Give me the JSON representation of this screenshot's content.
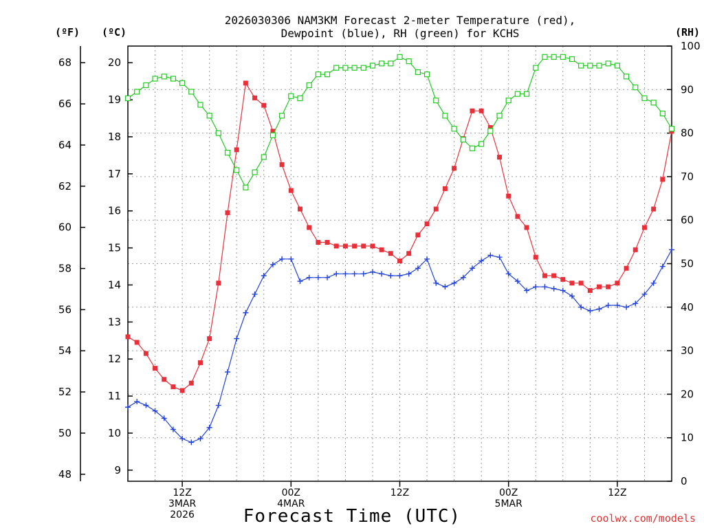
{
  "chart_data": {
    "type": "line",
    "title_line1": "2026030306 NAM3KM Forecast 2-meter Temperature (red),",
    "title_line2": "Dewpoint (blue), RH (green) for KCHS",
    "left_unit_f": "(ºF)",
    "left_unit_c": "(ºC)",
    "right_unit": "(RH)",
    "xlabel": "Forecast Time (UTC)",
    "credit": "coolwx.com/models",
    "x_hours_start": 6,
    "x_hours_end": 66,
    "fahrenheit_ticks": [
      "48",
      "50",
      "52",
      "54",
      "56",
      "58",
      "60",
      "62",
      "64",
      "66",
      "68"
    ],
    "celsius_ticks": [
      "9",
      "10",
      "11",
      "12",
      "13",
      "14",
      "15",
      "16",
      "17",
      "18",
      "19",
      "20"
    ],
    "rh_ticks": [
      "0",
      "10",
      "20",
      "30",
      "40",
      "50",
      "60",
      "70",
      "80",
      "90",
      "100"
    ],
    "y_celsius_range": [
      8.7,
      20.45
    ],
    "y_rh_range": [
      0,
      100
    ],
    "x_ticks": [
      {
        "hour": 12,
        "lines": [
          "12Z",
          "3MAR",
          "2026"
        ]
      },
      {
        "hour": 24,
        "lines": [
          "00Z",
          "4MAR"
        ]
      },
      {
        "hour": 36,
        "lines": [
          "12Z"
        ]
      },
      {
        "hour": 48,
        "lines": [
          "00Z",
          "5MAR"
        ]
      },
      {
        "hour": 60,
        "lines": [
          "12Z"
        ]
      }
    ],
    "grid": true,
    "series": [
      {
        "name": "Temperature",
        "color": "#e8303a",
        "marker": "filled-square",
        "values": [
          12.6,
          12.45,
          12.15,
          11.75,
          11.45,
          11.25,
          11.15,
          11.35,
          11.9,
          12.55,
          14.05,
          15.95,
          17.65,
          19.45,
          19.05,
          18.85,
          18.15,
          17.25,
          16.55,
          16.05,
          15.55,
          15.15,
          15.15,
          15.05,
          15.05,
          15.05,
          15.05,
          15.05,
          14.95,
          14.85,
          14.65,
          14.85,
          15.35,
          15.65,
          16.05,
          16.6,
          17.15,
          17.95,
          18.7,
          18.7,
          18.25,
          17.45,
          16.4,
          15.85,
          15.55,
          14.75,
          14.25,
          14.25,
          14.15,
          14.05,
          14.05,
          13.85,
          13.95,
          13.95,
          14.05,
          14.45,
          14.95,
          15.55,
          16.05,
          16.85,
          18.15
        ]
      },
      {
        "name": "Dewpoint",
        "color": "#2040d8",
        "marker": "plus",
        "values": [
          10.7,
          10.85,
          10.75,
          10.6,
          10.4,
          10.1,
          9.85,
          9.75,
          9.85,
          10.15,
          10.75,
          11.65,
          12.55,
          13.25,
          13.75,
          14.25,
          14.55,
          14.7,
          14.7,
          14.1,
          14.2,
          14.2,
          14.2,
          14.3,
          14.3,
          14.3,
          14.3,
          14.35,
          14.3,
          14.25,
          14.25,
          14.3,
          14.45,
          14.7,
          14.05,
          13.95,
          14.05,
          14.2,
          14.45,
          14.65,
          14.8,
          14.75,
          14.3,
          14.1,
          13.85,
          13.95,
          13.95,
          13.9,
          13.85,
          13.7,
          13.4,
          13.3,
          13.35,
          13.45,
          13.45,
          13.4,
          13.5,
          13.75,
          14.05,
          14.5,
          14.95
        ]
      },
      {
        "name": "RH",
        "color": "#22c822",
        "marker": "open-square",
        "values": [
          88,
          89.5,
          91,
          92.5,
          93,
          92.5,
          91.5,
          89.5,
          86.5,
          84,
          80,
          75.5,
          71.5,
          67.5,
          71,
          74.5,
          79.5,
          84,
          88.5,
          88,
          91,
          93.5,
          93.5,
          95,
          95,
          95,
          95,
          95.5,
          96,
          96,
          97.5,
          96.5,
          94,
          93.5,
          87.5,
          84,
          81,
          78.5,
          76.5,
          77.5,
          80.5,
          84,
          87.5,
          89,
          89,
          95,
          97.5,
          97.5,
          97.5,
          97,
          95.5,
          95.5,
          95.5,
          96,
          95.5,
          93,
          90.5,
          88,
          87,
          84.5,
          81
        ]
      }
    ]
  }
}
